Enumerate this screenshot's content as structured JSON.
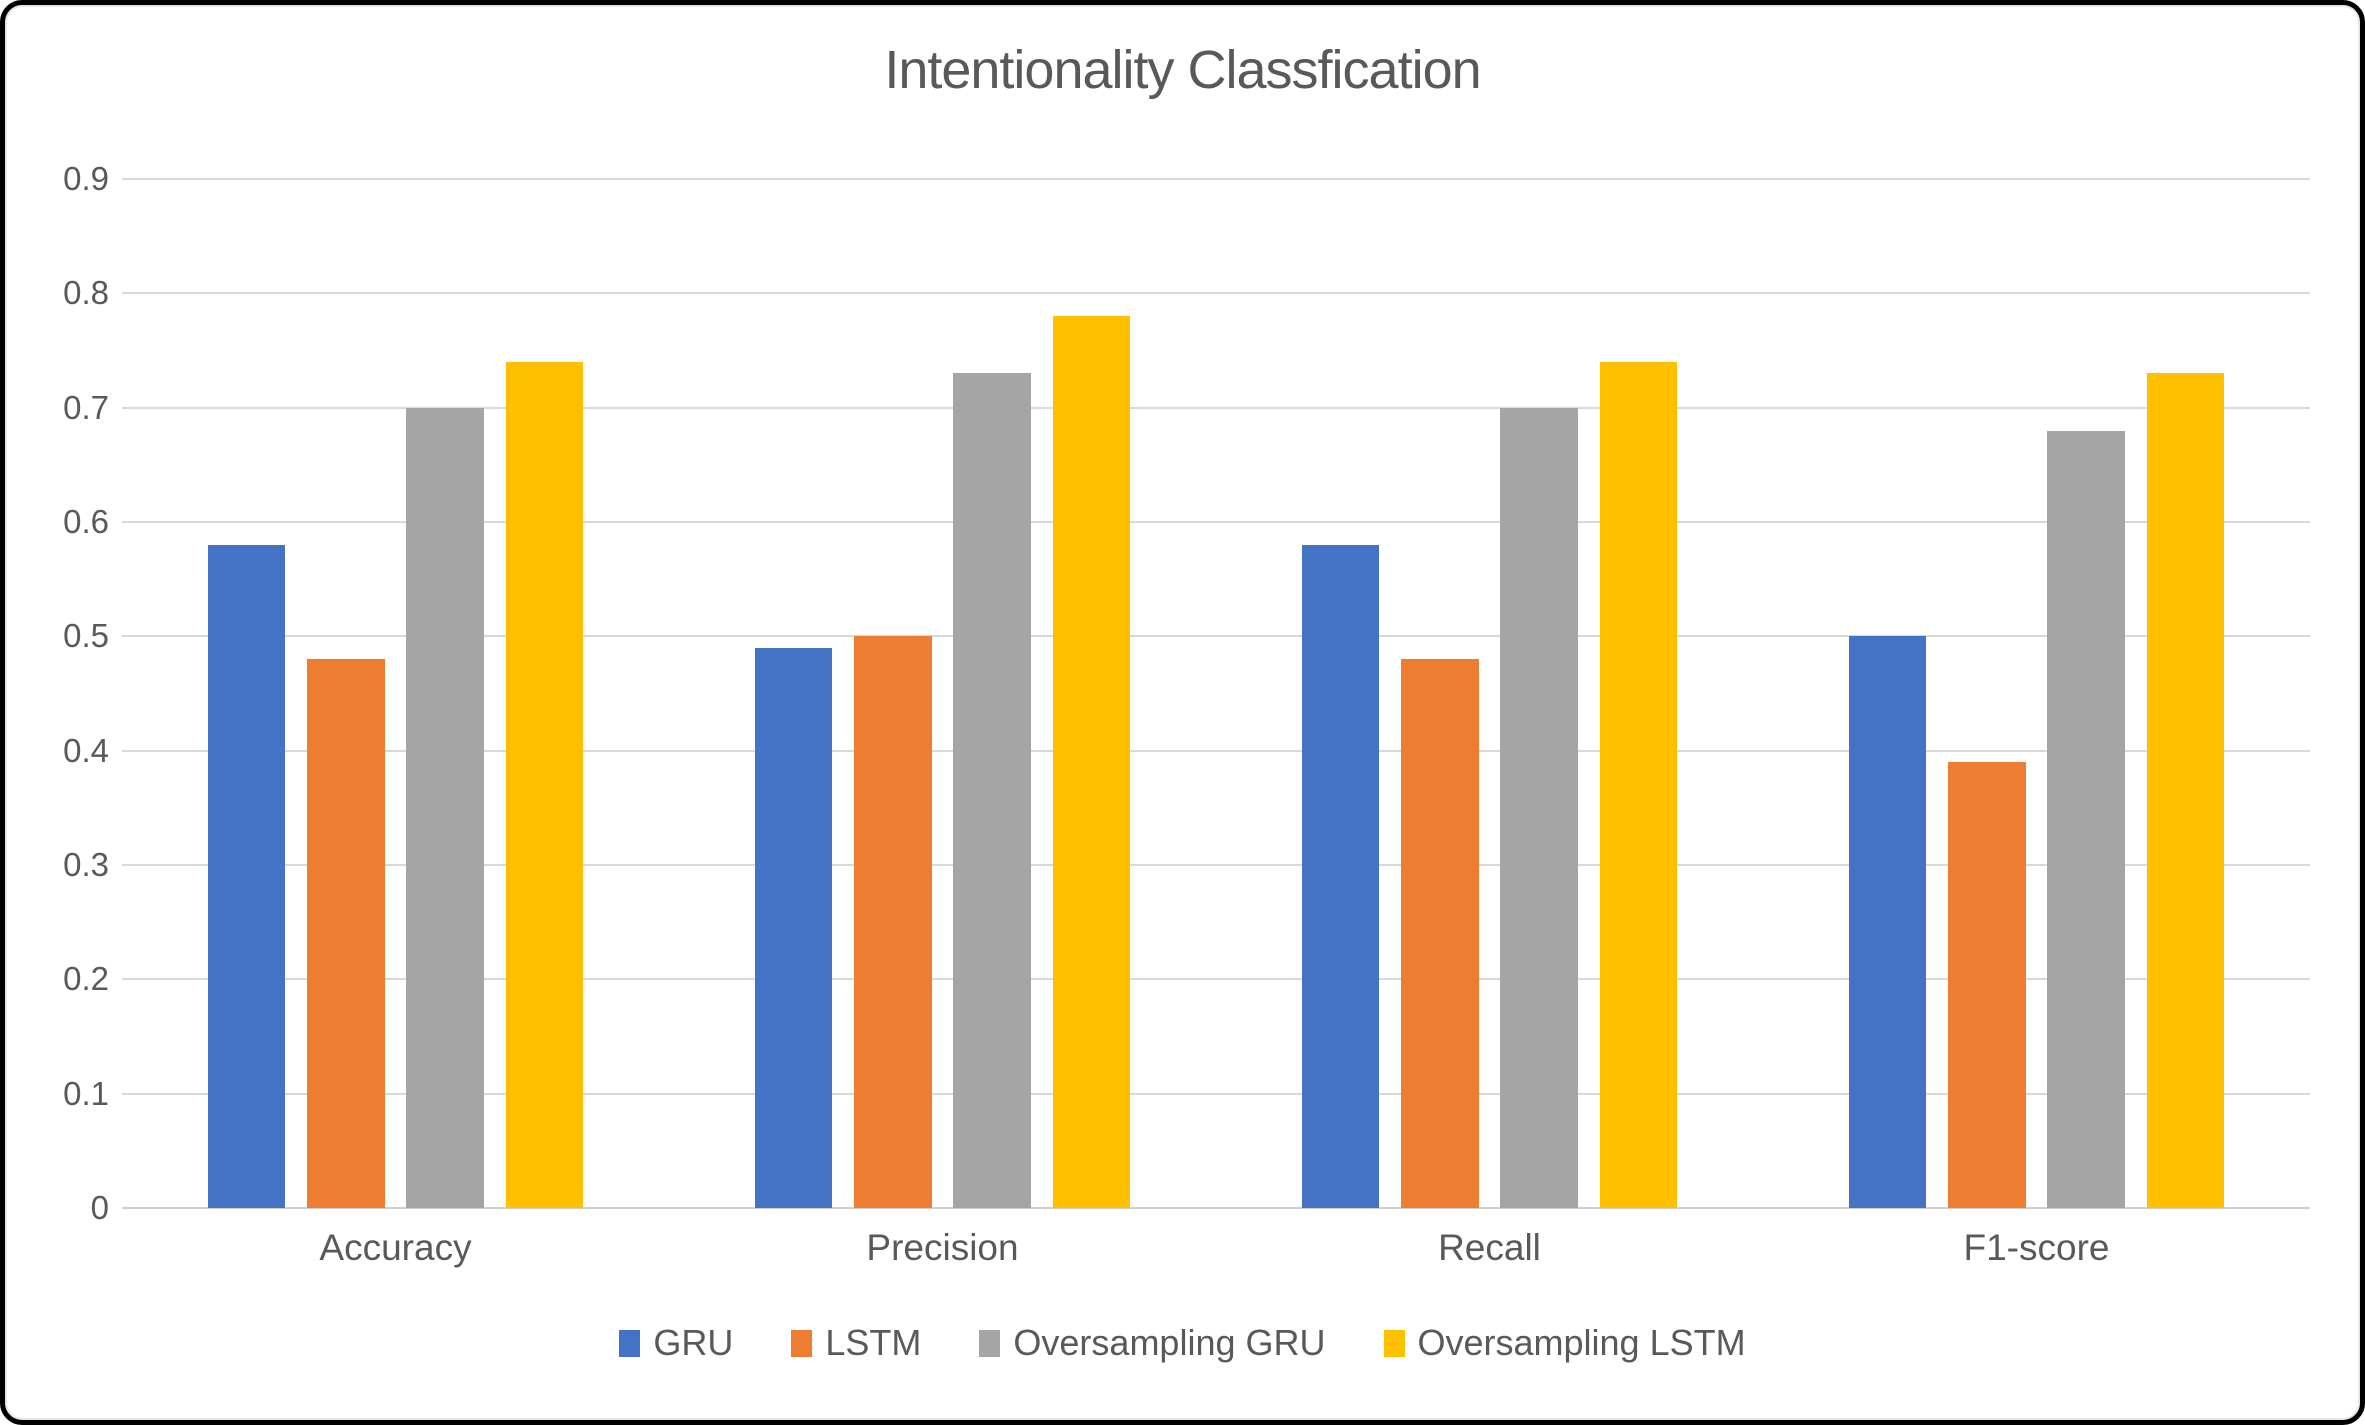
{
  "window": {
    "background_color": "#FFFFFF",
    "border_color": "#000000"
  },
  "chart_data": {
    "type": "bar",
    "title": "Intentionality Classfication",
    "categories": [
      "Accuracy",
      "Precision",
      "Recall",
      "F1-score"
    ],
    "series": [
      {
        "name": "GRU",
        "color": "#4472C4",
        "values": [
          0.58,
          0.49,
          0.58,
          0.5
        ]
      },
      {
        "name": "LSTM",
        "color": "#ED7D31",
        "values": [
          0.48,
          0.5,
          0.48,
          0.39
        ]
      },
      {
        "name": "Oversampling GRU",
        "color": "#A5A5A5",
        "values": [
          0.7,
          0.73,
          0.7,
          0.68
        ]
      },
      {
        "name": "Oversampling LSTM",
        "color": "#FFC000",
        "values": [
          0.74,
          0.78,
          0.74,
          0.73
        ]
      }
    ],
    "y_ticks": [
      {
        "value": 0.0,
        "label": "0"
      },
      {
        "value": 0.1,
        "label": "0.1"
      },
      {
        "value": 0.2,
        "label": "0.2"
      },
      {
        "value": 0.3,
        "label": "0.3"
      },
      {
        "value": 0.4,
        "label": "0.4"
      },
      {
        "value": 0.5,
        "label": "0.5"
      },
      {
        "value": 0.6,
        "label": "0.6"
      },
      {
        "value": 0.7,
        "label": "0.7"
      },
      {
        "value": 0.8,
        "label": "0.8"
      },
      {
        "value": 0.9,
        "label": "0.9"
      }
    ],
    "ylim": [
      0,
      0.9
    ],
    "xlabel": "",
    "ylabel": "",
    "grid": true,
    "grid_color": "#D9D9D9",
    "text_color": "#595959",
    "legend_position": "bottom"
  }
}
